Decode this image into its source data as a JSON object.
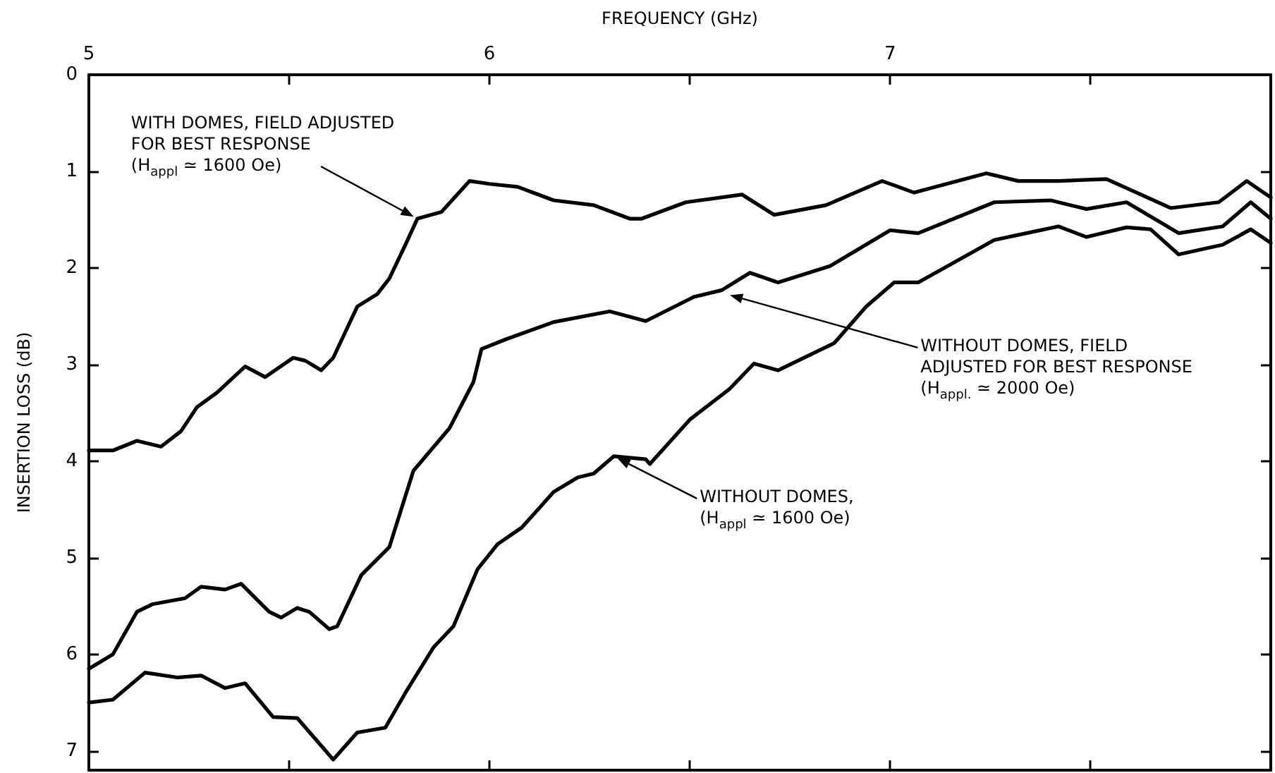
{
  "chart_data": {
    "type": "line",
    "xlabel": "FREQUENCY (GHz)",
    "ylabel": "INSERTION LOSS (dB)",
    "xlim": [
      5,
      7.95
    ],
    "xticks": [
      5,
      {
        "value": 5.5,
        "label": null
      },
      6,
      {
        "value": 6.5,
        "label": null
      },
      7,
      {
        "value": 7.5,
        "label": null
      }
    ],
    "ylim": [
      7.2,
      0
    ],
    "yticks": [
      0,
      1,
      2,
      3,
      4,
      5,
      6,
      7
    ],
    "marker": "none",
    "series": [
      {
        "color": "#000000",
        "x": [
          5.0,
          5.06,
          5.12,
          5.18,
          5.23,
          5.27,
          5.32,
          5.39,
          5.44,
          5.51,
          5.54,
          5.58,
          5.61,
          5.67,
          5.72,
          5.75,
          5.79,
          5.82,
          5.88,
          5.95,
          6.0,
          6.07,
          6.16,
          6.26,
          6.35,
          6.38,
          6.49,
          6.63,
          6.71,
          6.84,
          6.98,
          7.06,
          7.24,
          7.32,
          7.42,
          7.54,
          7.7,
          7.82,
          7.89,
          7.95
        ],
        "values": [
          3.89,
          3.89,
          3.79,
          3.85,
          3.69,
          3.44,
          3.29,
          3.02,
          3.13,
          2.93,
          2.96,
          3.06,
          2.93,
          2.4,
          2.27,
          2.11,
          1.76,
          1.49,
          1.42,
          1.1,
          1.13,
          1.16,
          1.3,
          1.35,
          1.49,
          1.49,
          1.32,
          1.24,
          1.45,
          1.35,
          1.1,
          1.22,
          1.02,
          1.1,
          1.1,
          1.08,
          1.38,
          1.32,
          1.1,
          1.27
        ]
      },
      {
        "color": "#000000",
        "x": [
          5.0,
          5.06,
          5.12,
          5.16,
          5.24,
          5.28,
          5.34,
          5.38,
          5.45,
          5.48,
          5.52,
          5.55,
          5.6,
          5.62,
          5.68,
          5.75,
          5.81,
          5.9,
          5.96,
          5.98,
          6.04,
          6.16,
          6.3,
          6.39,
          6.51,
          6.58,
          6.65,
          6.72,
          6.85,
          7.0,
          7.07,
          7.26,
          7.4,
          7.49,
          7.59,
          7.72,
          7.83,
          7.9,
          7.95
        ],
        "values": [
          6.15,
          6.0,
          5.56,
          5.48,
          5.42,
          5.3,
          5.33,
          5.27,
          5.56,
          5.62,
          5.52,
          5.56,
          5.74,
          5.71,
          5.18,
          4.89,
          4.1,
          3.66,
          3.18,
          2.84,
          2.74,
          2.56,
          2.45,
          2.55,
          2.3,
          2.23,
          2.05,
          2.15,
          1.98,
          1.61,
          1.64,
          1.32,
          1.3,
          1.39,
          1.32,
          1.64,
          1.57,
          1.32,
          1.49
        ]
      },
      {
        "color": "#000000",
        "x": [
          5.0,
          5.06,
          5.14,
          5.22,
          5.28,
          5.34,
          5.39,
          5.46,
          5.52,
          5.61,
          5.67,
          5.74,
          5.79,
          5.86,
          5.91,
          5.97,
          6.02,
          6.08,
          6.16,
          6.22,
          6.26,
          6.31,
          6.39,
          6.4,
          6.5,
          6.6,
          6.66,
          6.72,
          6.86,
          6.94,
          7.01,
          7.07,
          7.26,
          7.34,
          7.42,
          7.49,
          7.59,
          7.65,
          7.72,
          7.83,
          7.9,
          7.95
        ],
        "values": [
          6.5,
          6.47,
          6.19,
          6.24,
          6.22,
          6.35,
          6.3,
          6.65,
          6.66,
          7.09,
          6.81,
          6.76,
          6.4,
          5.93,
          5.71,
          5.12,
          4.86,
          4.69,
          4.32,
          4.17,
          4.13,
          3.95,
          3.98,
          4.03,
          3.57,
          3.25,
          2.99,
          3.06,
          2.78,
          2.4,
          2.15,
          2.15,
          1.71,
          1.64,
          1.57,
          1.68,
          1.58,
          1.6,
          1.86,
          1.76,
          1.6,
          1.74
        ]
      }
    ],
    "annotations": [
      {
        "text": "WITH DOMES, FIELD ADJUSTED\nFOR BEST RESPONSE\n(H$_{appl}$ ≃ 1600 Oe)",
        "x": 5.82,
        "y": 1.49
      },
      {
        "text": "WITHOUT DOMES, FIELD\nADJUSTED FOR BEST RESPONSE\n(H$_{appl.}$ ≃ 2000 Oe)",
        "x": 6.59,
        "y": 2.27
      },
      {
        "text": "WITHOUT DOMES,\n(H$_{appl}$ ≃ 1600 Oe)",
        "x": 6.31,
        "y": 3.95
      }
    ]
  }
}
